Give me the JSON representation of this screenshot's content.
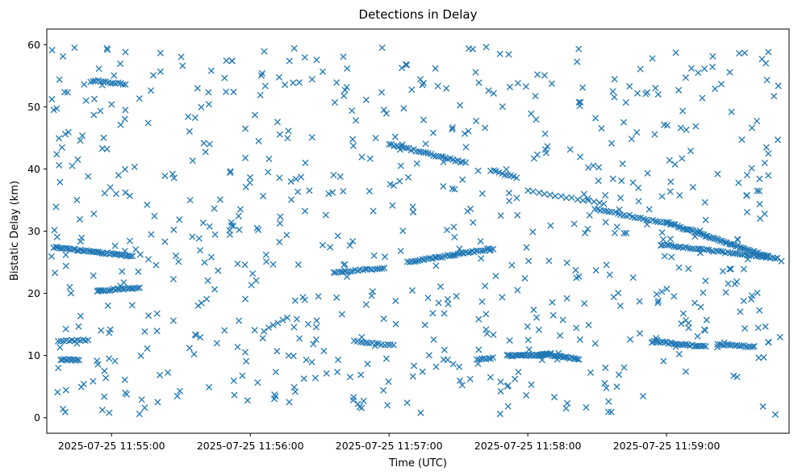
{
  "chart_data": {
    "type": "scatter",
    "title": "Detections in Delay",
    "xlabel": "Time (UTC)",
    "ylabel": "Bistatic Delay (km)",
    "marker": "x",
    "marker_color": "#1f77b4",
    "x_unit": "seconds after 2025-07-25 11:54:00",
    "xlim": [
      32,
      353
    ],
    "ylim": [
      -2.5,
      62.5
    ],
    "x_ticks": [
      {
        "value": 60,
        "label": "2025-07-25 11:55:00"
      },
      {
        "value": 120,
        "label": "2025-07-25 11:56:00"
      },
      {
        "value": 180,
        "label": "2025-07-25 11:57:00"
      },
      {
        "value": 240,
        "label": "2025-07-25 11:58:00"
      },
      {
        "value": 300,
        "label": "2025-07-25 11:59:00"
      }
    ],
    "y_ticks": [
      0,
      10,
      20,
      30,
      40,
      50,
      60
    ],
    "grid": false,
    "legend": "none",
    "tracks": [
      {
        "x0": 35,
        "x1": 69,
        "y0": 27.4,
        "y1": 26.0,
        "points": 42
      },
      {
        "x0": 54,
        "x1": 72,
        "y0": 20.4,
        "y1": 20.9,
        "points": 22
      },
      {
        "x0": 52,
        "x1": 66,
        "y0": 54.2,
        "y1": 53.6,
        "points": 14
      },
      {
        "x0": 37,
        "x1": 50,
        "y0": 12.4,
        "y1": 12.4,
        "points": 12
      },
      {
        "x0": 38,
        "x1": 46,
        "y0": 9.4,
        "y1": 9.2,
        "points": 12
      },
      {
        "x0": 126,
        "x1": 136,
        "y0": 14.0,
        "y1": 16.0,
        "points": 6
      },
      {
        "x0": 156,
        "x1": 178,
        "y0": 23.3,
        "y1": 24.1,
        "points": 22
      },
      {
        "x0": 165,
        "x1": 182,
        "y0": 12.3,
        "y1": 11.6,
        "points": 14
      },
      {
        "x0": 180,
        "x1": 213,
        "y0": 44.0,
        "y1": 41.0,
        "points": 32
      },
      {
        "x0": 188,
        "x1": 225,
        "y0": 25.0,
        "y1": 27.2,
        "points": 42
      },
      {
        "x0": 224,
        "x1": 235,
        "y0": 39.8,
        "y1": 38.6,
        "points": 10
      },
      {
        "x0": 218,
        "x1": 225,
        "y0": 9.3,
        "y1": 9.6,
        "points": 8
      },
      {
        "x0": 231,
        "x1": 248,
        "y0": 10.0,
        "y1": 10.1,
        "points": 26
      },
      {
        "x0": 246,
        "x1": 262,
        "y0": 10.3,
        "y1": 9.4,
        "points": 22
      },
      {
        "x0": 240,
        "x1": 271,
        "y0": 36.5,
        "y1": 34.5,
        "points": 14
      },
      {
        "x0": 269,
        "x1": 300,
        "y0": 33.6,
        "y1": 31.2,
        "points": 26
      },
      {
        "x0": 298,
        "x1": 348,
        "y0": 27.8,
        "y1": 25.6,
        "points": 50
      },
      {
        "x0": 300,
        "x1": 344,
        "y0": 31.4,
        "y1": 25.9,
        "points": 58
      },
      {
        "x0": 294,
        "x1": 317,
        "y0": 12.3,
        "y1": 11.4,
        "points": 28
      },
      {
        "x0": 322,
        "x1": 338,
        "y0": 11.8,
        "y1": 11.4,
        "points": 18
      }
    ],
    "background": {
      "x_range": [
        34,
        350
      ],
      "y_range": [
        0.5,
        59.8
      ],
      "points": 700,
      "seed": 20250725
    },
    "scatter": [
      [
        44,
        59.5
      ],
      [
        58,
        59.4
      ],
      [
        66,
        58.8
      ],
      [
        139,
        59.4
      ],
      [
        177,
        59.5
      ],
      [
        222,
        59.6
      ],
      [
        262,
        59.3
      ],
      [
        39,
        58.1
      ],
      [
        126,
        58.9
      ],
      [
        228,
        58.5
      ],
      [
        304,
        58.7
      ],
      [
        320,
        58.1
      ],
      [
        344,
        58.8
      ],
      [
        35,
        49.5
      ],
      [
        36,
        33.9
      ],
      [
        40,
        45.6
      ],
      [
        41,
        52.3
      ],
      [
        43,
        40.5
      ],
      [
        45,
        35.0
      ],
      [
        49,
        51.0
      ],
      [
        48,
        5.4
      ],
      [
        39,
        1.4
      ],
      [
        40,
        0.9
      ],
      [
        56,
        43.3
      ],
      [
        58,
        43.2
      ],
      [
        60,
        50.4
      ],
      [
        57,
        36.1
      ],
      [
        62,
        36.0
      ],
      [
        66,
        36.2
      ],
      [
        59,
        0.8
      ],
      [
        63,
        39.0
      ]
    ]
  }
}
